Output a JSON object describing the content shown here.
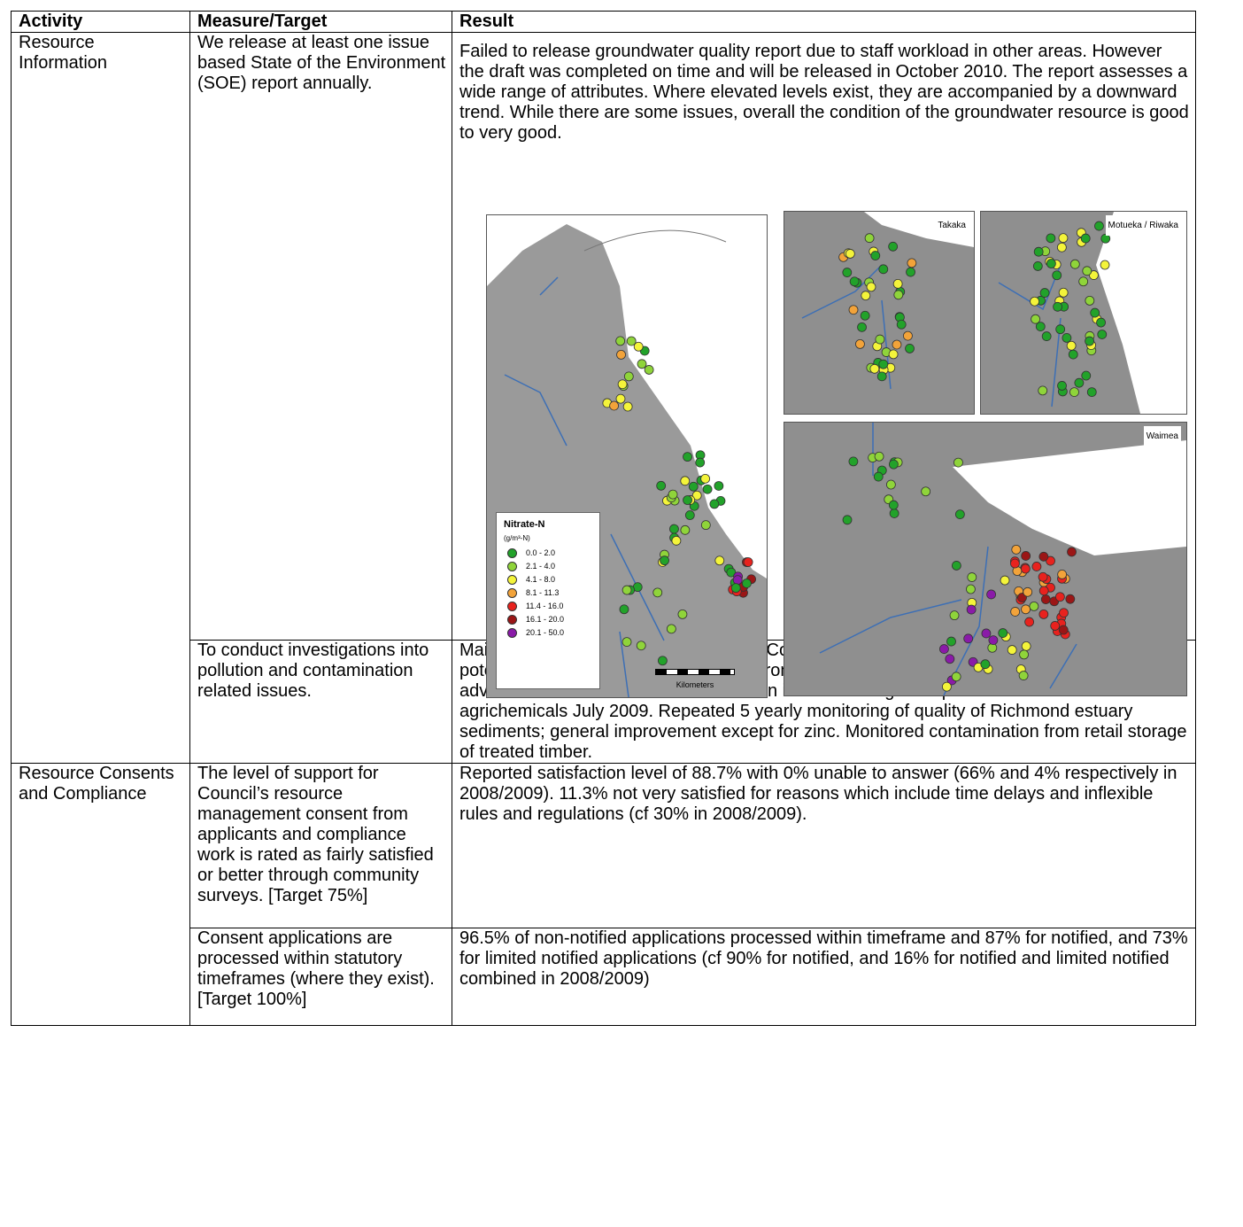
{
  "headers": {
    "activity": "Activity",
    "measure": "Measure/Target",
    "result": "Result"
  },
  "rows": [
    {
      "activity": "Resource Information",
      "measure": "We release at least one issue based State of the Environment (SOE) report annually.",
      "result": "Failed to release groundwater quality report due to staff workload in other areas.  However the draft was completed on time and will be released in October 2010.  The report assesses a wide range of attributes.  Where elevated levels exist, they are accompanied by a downward trend.  While there are some issues, overall the condition of the groundwater resource is good to very good."
    },
    {
      "activity": "",
      "measure": "To conduct investigations into pollution and contamination related issues.",
      "result": "Maintained and updated Council’s Site Contamination Register which records known or potential contamination risks resulting from past or present land use practices.  Provided advice to landowners with contamination issues.  Arranged disposal of 10 tonnes of unwanted agrichemicals July 2009.  Repeated 5 yearly monitoring of quality of Richmond estuary sediments; general improvement except for zinc.  Monitored contamination from retail storage of treated timber."
    },
    {
      "activity": "Resource Consents and Compliance",
      "measure": "The level of support for Council’s resource management consent from applicants and compliance work is rated as fairly satisfied or better through community surveys. [Target 75%]",
      "result": "Reported satisfaction level of 88.7% with 0% unable to answer (66% and 4% respectively in 2008/2009).  11.3% not very satisfied for reasons which include time delays and inflexible rules and regulations (cf 30% in 2008/2009)."
    },
    {
      "activity": "",
      "measure": "Consent applications are processed within statutory timeframes (where they exist). [Target 100%]",
      "result": "96.5% of non-notified applications processed within timeframe and 87% for notified, and 73% for limited notified applications (cf 90% for notified, and 16% for notified and limited notified combined in 2008/2009)"
    }
  ],
  "maps": {
    "takaka": "Takaka",
    "motueka": "Motueka / Riwaka",
    "waimea": "Waimea",
    "km": "Kilometers",
    "scale_0": "0",
    "scale_5": "5",
    "scale_10": "10",
    "scale_20": "20"
  },
  "legend": {
    "title": "Nitrate-N",
    "unit": "(g/m³-N)",
    "items": [
      {
        "label": "0.0 - 2.0",
        "color": "#22a22a"
      },
      {
        "label": "2.1 - 4.0",
        "color": "#8fd43a"
      },
      {
        "label": "4.1 - 8.0",
        "color": "#f4f43a"
      },
      {
        "label": "8.1 - 11.3",
        "color": "#f2a33a"
      },
      {
        "label": "11.4 - 16.0",
        "color": "#e8221e"
      },
      {
        "label": "16.1 - 20.0",
        "color": "#9b1616"
      },
      {
        "label": "20.1 - 50.0",
        "color": "#8a1aa8"
      }
    ]
  }
}
